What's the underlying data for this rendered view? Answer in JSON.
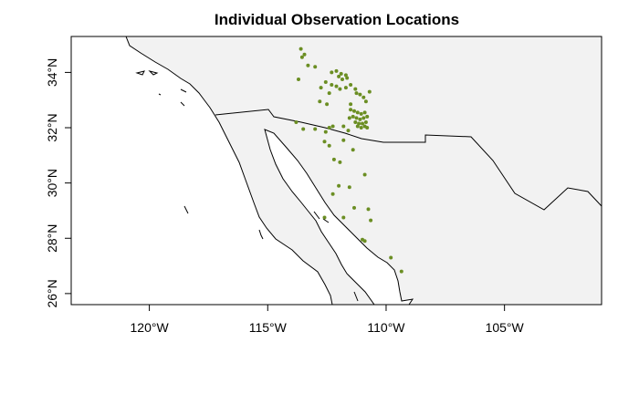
{
  "chart_data": {
    "type": "scatter",
    "title": "Individual Observation Locations",
    "xlabel": "",
    "ylabel": "",
    "xlim": [
      -123.3,
      -100.9
    ],
    "ylim": [
      25.6,
      35.3
    ],
    "x_ticks": [
      -120,
      -115,
      -110,
      -105
    ],
    "x_tick_labels": [
      "120°W",
      "115°W",
      "110°W",
      "105°W"
    ],
    "y_ticks": [
      26,
      28,
      30,
      32,
      34
    ],
    "y_tick_labels": [
      "26°N",
      "28°N",
      "30°N",
      "32°N",
      "34°N"
    ],
    "grid": false,
    "legend": "none",
    "point_color": "#6b8e23",
    "land_color": "#f2f2f2",
    "points": [
      [
        -113.6,
        34.85
      ],
      [
        -113.45,
        34.65
      ],
      [
        -113.55,
        34.55
      ],
      [
        -113.3,
        34.25
      ],
      [
        -113.0,
        34.2
      ],
      [
        -113.7,
        33.75
      ],
      [
        -112.3,
        34.0
      ],
      [
        -112.1,
        34.05
      ],
      [
        -111.9,
        33.95
      ],
      [
        -111.7,
        33.9
      ],
      [
        -112.0,
        33.85
      ],
      [
        -111.85,
        33.75
      ],
      [
        -111.65,
        33.8
      ],
      [
        -112.55,
        33.65
      ],
      [
        -112.3,
        33.55
      ],
      [
        -111.5,
        33.55
      ],
      [
        -112.75,
        33.45
      ],
      [
        -112.1,
        33.5
      ],
      [
        -111.95,
        33.4
      ],
      [
        -111.7,
        33.45
      ],
      [
        -111.3,
        33.4
      ],
      [
        -110.7,
        33.3
      ],
      [
        -112.4,
        33.25
      ],
      [
        -111.25,
        33.25
      ],
      [
        -111.1,
        33.2
      ],
      [
        -110.95,
        33.1
      ],
      [
        -110.85,
        32.95
      ],
      [
        -112.8,
        32.95
      ],
      [
        -112.5,
        32.85
      ],
      [
        -111.5,
        32.85
      ],
      [
        -111.5,
        32.65
      ],
      [
        -111.35,
        32.6
      ],
      [
        -111.2,
        32.55
      ],
      [
        -111.05,
        32.5
      ],
      [
        -110.9,
        32.55
      ],
      [
        -111.4,
        32.4
      ],
      [
        -111.25,
        32.35
      ],
      [
        -111.1,
        32.3
      ],
      [
        -110.95,
        32.35
      ],
      [
        -110.8,
        32.4
      ],
      [
        -111.3,
        32.2
      ],
      [
        -111.15,
        32.15
      ],
      [
        -111.0,
        32.15
      ],
      [
        -110.85,
        32.2
      ],
      [
        -111.2,
        32.05
      ],
      [
        -111.05,
        32.0
      ],
      [
        -110.9,
        32.05
      ],
      [
        -110.8,
        32.0
      ],
      [
        -111.55,
        32.35
      ],
      [
        -112.4,
        32.0
      ],
      [
        -112.25,
        32.05
      ],
      [
        -111.8,
        32.05
      ],
      [
        -111.6,
        31.9
      ],
      [
        -113.8,
        32.2
      ],
      [
        -113.5,
        31.95
      ],
      [
        -113.0,
        31.95
      ],
      [
        -112.55,
        31.85
      ],
      [
        -112.6,
        31.5
      ],
      [
        -112.4,
        31.35
      ],
      [
        -111.8,
        31.55
      ],
      [
        -111.4,
        31.2
      ],
      [
        -112.2,
        30.85
      ],
      [
        -111.95,
        30.75
      ],
      [
        -112.0,
        29.9
      ],
      [
        -111.55,
        29.85
      ],
      [
        -110.9,
        30.3
      ],
      [
        -112.25,
        29.6
      ],
      [
        -111.35,
        29.1
      ],
      [
        -110.75,
        29.05
      ],
      [
        -112.6,
        28.75
      ],
      [
        -111.8,
        28.75
      ],
      [
        -110.65,
        28.65
      ],
      [
        -111.0,
        27.95
      ],
      [
        -110.9,
        27.9
      ],
      [
        -109.8,
        27.3
      ],
      [
        -109.35,
        26.8
      ]
    ]
  }
}
